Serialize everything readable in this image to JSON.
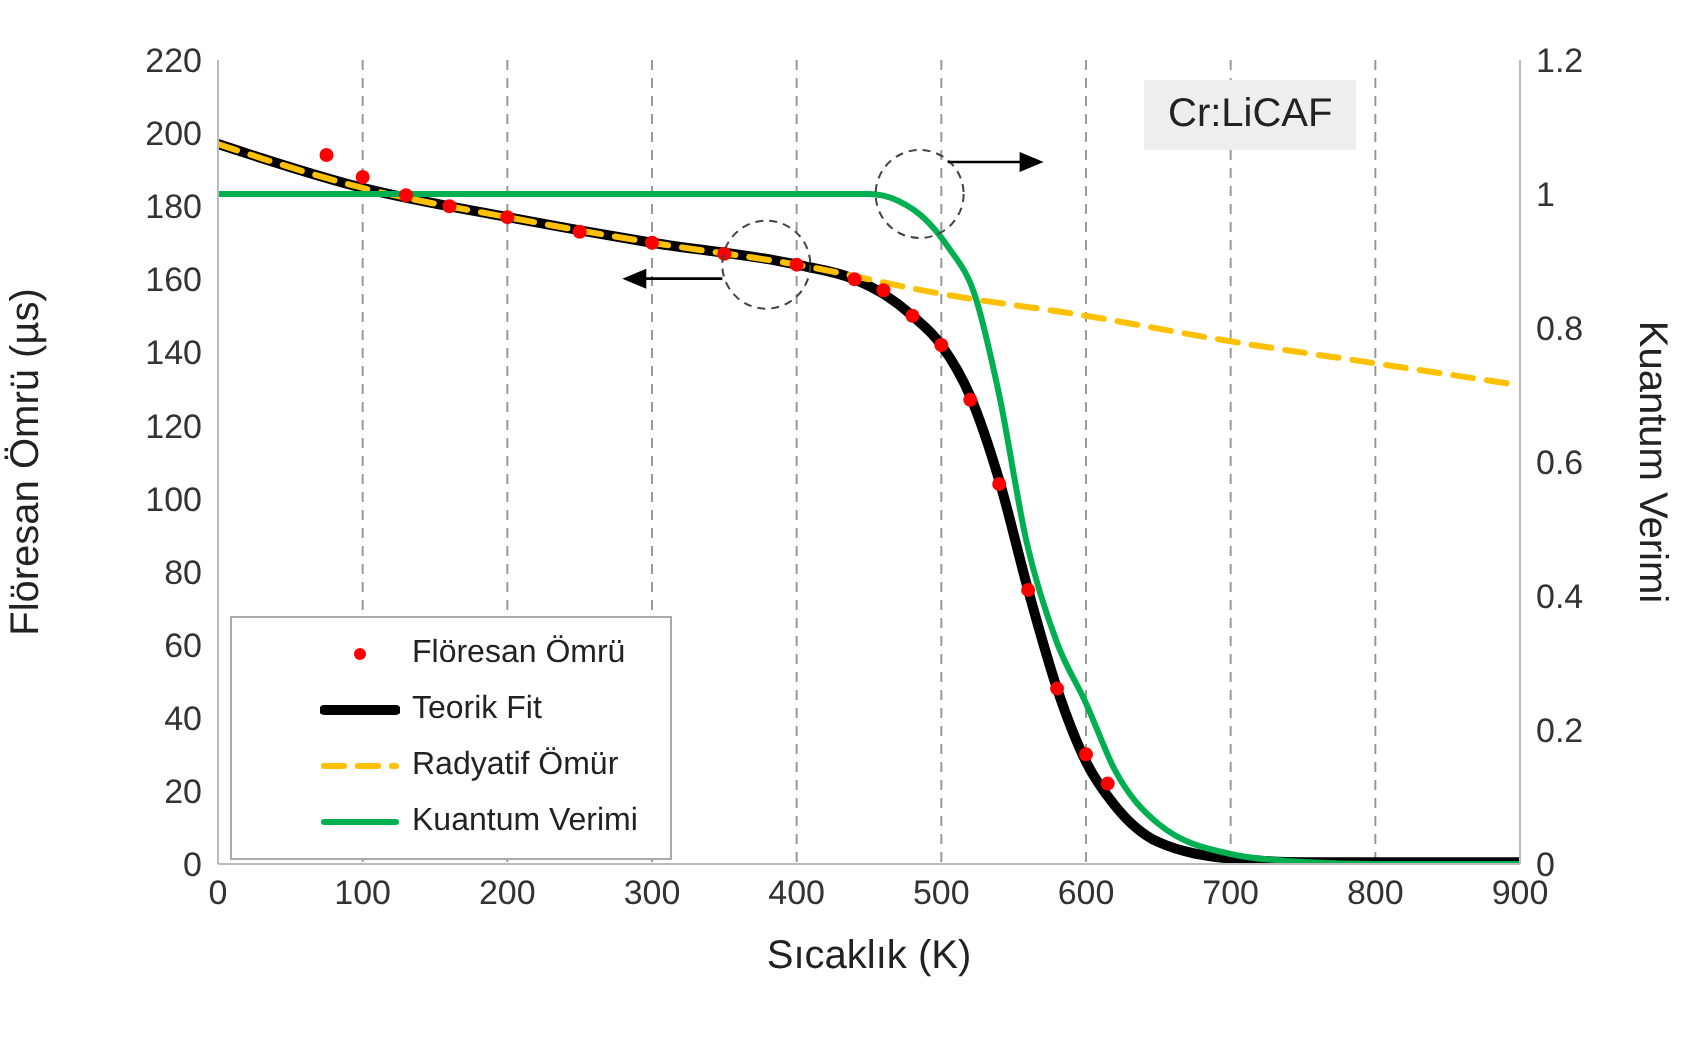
{
  "chart_data": {
    "type": "line",
    "xlabel": "Sıcaklık (K)",
    "ylabel": "Flöresan Ömrü (µs)",
    "y2label": "Kuantum Verimi",
    "xlim": [
      0,
      900
    ],
    "xticks": [
      0,
      100,
      200,
      300,
      400,
      500,
      600,
      700,
      800,
      900
    ],
    "ylim": [
      0,
      220
    ],
    "yticks": [
      0,
      20,
      40,
      60,
      80,
      100,
      120,
      140,
      160,
      180,
      200,
      220
    ],
    "y2lim": [
      0,
      1.2
    ],
    "y2ticks": [
      0,
      0.2,
      0.4,
      0.6,
      0.8,
      1,
      1.2
    ],
    "grid": "x",
    "legend": "bottom left",
    "annotations": [
      "Cr:LiCAF"
    ],
    "series": [
      {
        "name": "Flöresan Ömrü",
        "type": "scatter",
        "marker": "circle",
        "color": "#ff0000",
        "x": [
          75,
          100,
          130,
          160,
          200,
          250,
          300,
          350,
          400,
          440,
          460,
          480,
          500,
          520,
          540,
          560,
          580,
          600,
          615
        ],
        "values": [
          194,
          188,
          183,
          180,
          177,
          173,
          170,
          167,
          164,
          160,
          157,
          150,
          142,
          127,
          104,
          75,
          48,
          30,
          22
        ]
      },
      {
        "name": "Teorik Fit",
        "color": "#000000",
        "line_style": "solid",
        "x": [
          0,
          100,
          200,
          300,
          400,
          440,
          460,
          480,
          500,
          520,
          540,
          560,
          580,
          600,
          620,
          650,
          700,
          750,
          800,
          900
        ],
        "values": [
          197,
          185,
          177,
          170,
          164,
          160,
          156,
          150,
          142,
          128,
          105,
          75,
          48,
          28,
          16,
          6,
          1.5,
          0.5,
          0.5,
          0.5
        ]
      },
      {
        "name": "Radyatif Ömür",
        "color": "#ffc000",
        "line_style": "dashed",
        "x": [
          0,
          100,
          200,
          300,
          400,
          500,
          600,
          700,
          800,
          900
        ],
        "values": [
          197,
          185,
          177,
          170,
          164,
          156,
          150,
          143,
          137,
          131
        ]
      },
      {
        "name": "Kuantum Verimi",
        "axis": "y2",
        "color": "#00b050",
        "line_style": "solid",
        "x": [
          0,
          450,
          470,
          490,
          505,
          523,
          540,
          559,
          580,
          600,
          620,
          650,
          700,
          750,
          800,
          900
        ],
        "values": [
          1,
          1,
          0.99,
          0.96,
          0.92,
          0.85,
          0.7,
          0.48,
          0.33,
          0.24,
          0.14,
          0.06,
          0.015,
          0.003,
          0,
          0
        ]
      }
    ]
  }
}
